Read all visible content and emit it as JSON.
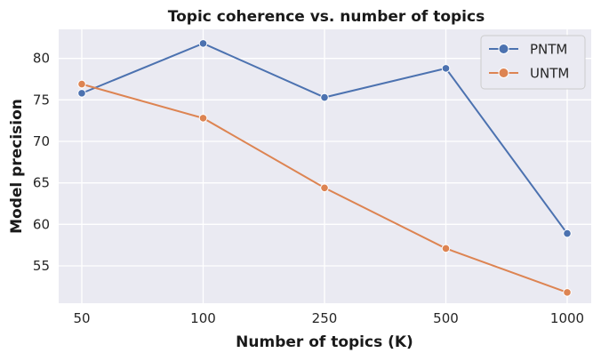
{
  "chart_data": {
    "type": "line",
    "title": "Topic coherence vs. number of topics",
    "xlabel": "Number of topics (K)",
    "ylabel": "Model precision",
    "categories": [
      "50",
      "100",
      "250",
      "500",
      "1000"
    ],
    "ylim": [
      50.5,
      83.5
    ],
    "yticks": [
      55,
      60,
      65,
      70,
      75,
      80
    ],
    "grid": true,
    "legend_position": "top-right",
    "series": [
      {
        "name": "PNTM",
        "color": "#4c72b0",
        "values": [
          75.8,
          81.8,
          75.3,
          78.8,
          58.9
        ]
      },
      {
        "name": "UNTM",
        "color": "#dd8452",
        "values": [
          76.9,
          72.8,
          64.4,
          57.1,
          51.8
        ]
      }
    ]
  },
  "colors": {
    "plot_background": "#eaeaf2",
    "grid": "#ffffff"
  }
}
